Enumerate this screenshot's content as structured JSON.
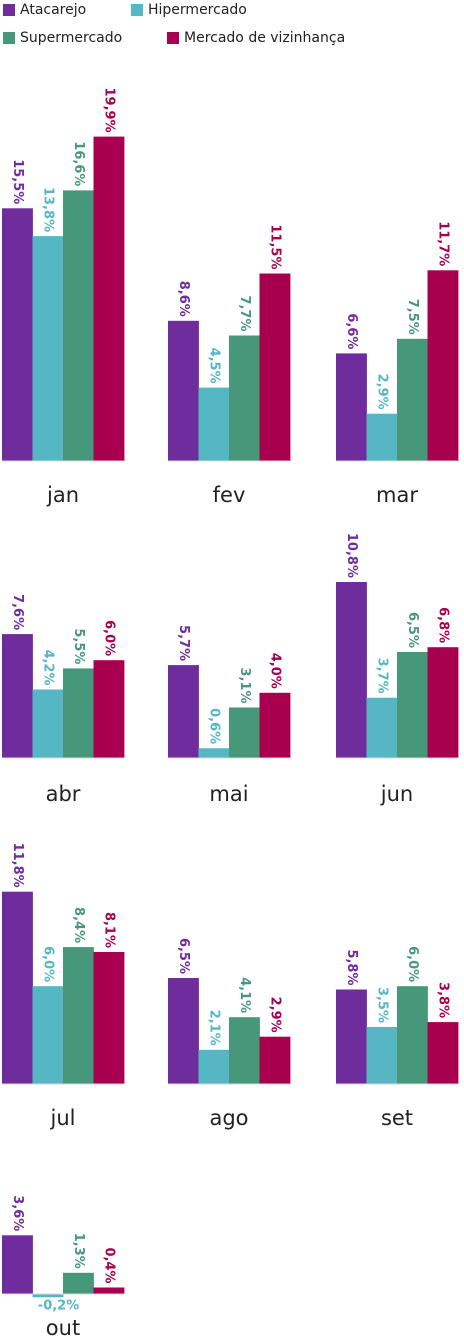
{
  "chart_data": {
    "type": "bar",
    "series": [
      {
        "name": "Atacarejo",
        "color": "#6f2c9c",
        "values": [
          15.5,
          8.6,
          6.6,
          7.6,
          5.7,
          10.8,
          11.8,
          6.5,
          5.8,
          3.6
        ]
      },
      {
        "name": "Hipermercado",
        "color": "#56b7c4",
        "values": [
          13.8,
          4.5,
          2.9,
          4.2,
          0.6,
          3.7,
          6.0,
          2.1,
          3.5,
          -0.2
        ]
      },
      {
        "name": "Supermercado",
        "color": "#47987a",
        "values": [
          16.6,
          7.7,
          7.5,
          5.5,
          3.1,
          6.5,
          8.4,
          4.1,
          6.0,
          1.3
        ]
      },
      {
        "name": "Mercado de vizinhança",
        "color": "#a8004f",
        "values": [
          19.9,
          11.5,
          11.7,
          6.0,
          4.0,
          6.8,
          8.1,
          2.9,
          3.8,
          0.4
        ]
      }
    ],
    "categories": [
      "jan",
      "fev",
      "mar",
      "abr",
      "mai",
      "jun",
      "jul",
      "ago",
      "set",
      "out"
    ],
    "value_labels": [
      [
        "15,5%",
        "13,8%",
        "16,6%",
        "19,9%"
      ],
      [
        "8,6%",
        "4,5%",
        "7,7%",
        "11,5%"
      ],
      [
        "6,6%",
        "2,9%",
        "7,5%",
        "11,7%"
      ],
      [
        "7,6%",
        "4,2%",
        "5,5%",
        "6,0%"
      ],
      [
        "5,7%",
        "0,6%",
        "3,1%",
        "4,0%"
      ],
      [
        "10,8%",
        "3,7%",
        "6,5%",
        "6,8%"
      ],
      [
        "11,8%",
        "6,0%",
        "8,4%",
        "8,1%"
      ],
      [
        "6,5%",
        "2,1%",
        "4,1%",
        "2,9%"
      ],
      [
        "5,8%",
        "3,5%",
        "6,0%",
        "3,8%"
      ],
      [
        "3,6%",
        "-0,2%",
        "1,3%",
        "0,4%"
      ]
    ],
    "legend_position": "top-left",
    "grid": false
  }
}
